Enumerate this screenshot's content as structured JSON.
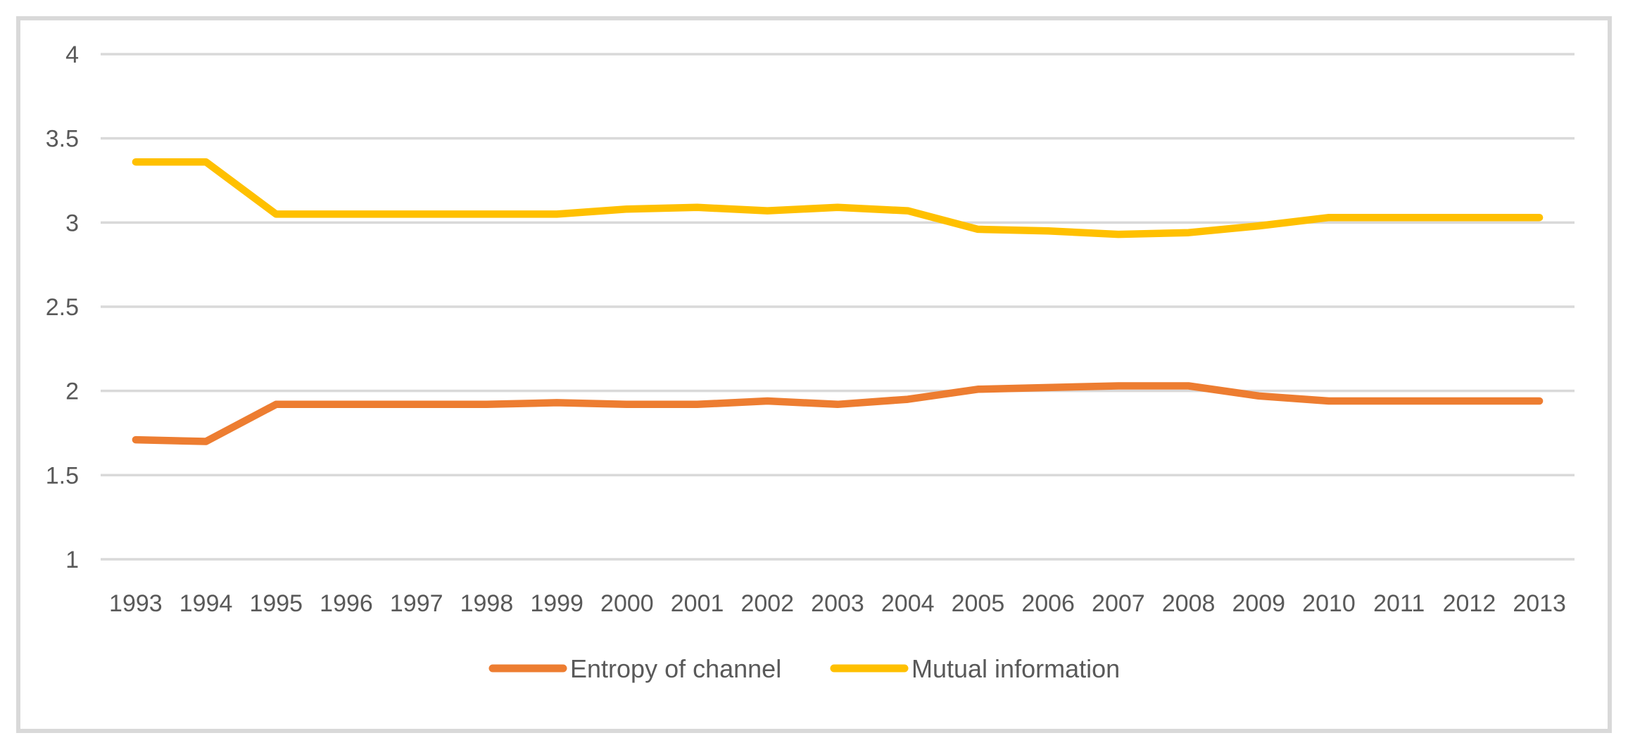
{
  "figure": {
    "background": "#FFFFFF",
    "border_color": "#D9D9D9",
    "gridline_color": "#D9D9D9",
    "text_color": "#595959"
  },
  "chart_data": {
    "type": "line",
    "title": "",
    "xlabel": "",
    "ylabel": "",
    "grid": "horizontal",
    "legend_position": "bottom",
    "ylim": [
      1,
      4
    ],
    "ytick_labels": [
      "4",
      "3.5",
      "3",
      "2.5",
      "2",
      "1.5",
      "1"
    ],
    "yticks": [
      4,
      3.5,
      3,
      2.5,
      2,
      1.5,
      1
    ],
    "categories": [
      "1993",
      "1994",
      "1995",
      "1996",
      "1997",
      "1998",
      "1999",
      "2000",
      "2001",
      "2002",
      "2003",
      "2004",
      "2005",
      "2006",
      "2007",
      "2008",
      "2009",
      "2010",
      "2011",
      "2012",
      "2013"
    ],
    "series": [
      {
        "name": "Entropy of channel",
        "color": "#ED7D31",
        "values": [
          1.71,
          1.7,
          1.92,
          1.92,
          1.92,
          1.92,
          1.93,
          1.92,
          1.92,
          1.94,
          1.92,
          1.95,
          2.01,
          2.02,
          2.03,
          2.03,
          1.97,
          1.94,
          1.94,
          1.94,
          1.94
        ]
      },
      {
        "name": "Mutual information",
        "color": "#FFC000",
        "values": [
          3.36,
          3.36,
          3.05,
          3.05,
          3.05,
          3.05,
          3.05,
          3.08,
          3.09,
          3.07,
          3.09,
          3.07,
          2.96,
          2.95,
          2.93,
          2.94,
          2.98,
          3.03,
          3.03,
          3.03,
          3.03
        ]
      }
    ]
  }
}
